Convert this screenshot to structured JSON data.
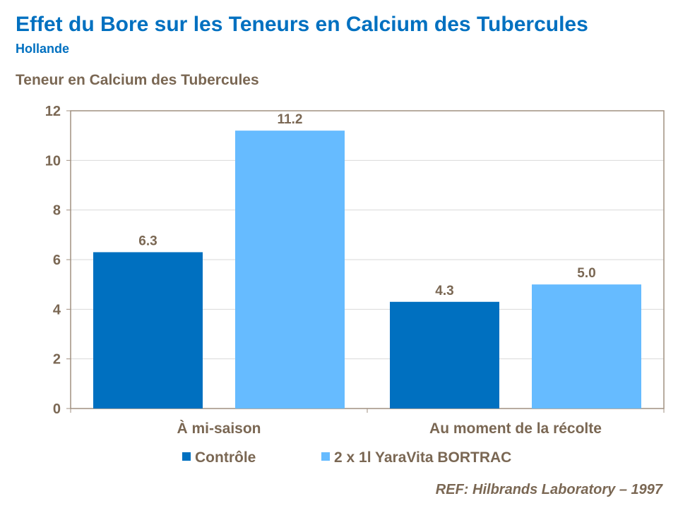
{
  "title": "Effet du Bore sur les Teneurs en Calcium des Tubercules",
  "subtitle": "Hollande",
  "reference": "REF: Hilbrands Laboratory – 1997",
  "chart_data": {
    "type": "bar",
    "ylabel": "Teneur en Calcium des Tubercules",
    "categories": [
      "À mi-saison",
      "Au moment de la récolte"
    ],
    "series": [
      {
        "name": "Contrôle",
        "values": [
          6.3,
          4.3
        ],
        "color": "#0070C0"
      },
      {
        "name": "2 x 1l YaraVita BORTRAC",
        "values": [
          11.2,
          5.0
        ],
        "color": "#66BBFF"
      }
    ],
    "ylim": [
      0,
      12
    ],
    "yticks": [
      0,
      2,
      4,
      6,
      8,
      10,
      12
    ],
    "grid": true,
    "legend": "bottom",
    "data_labels": true
  }
}
